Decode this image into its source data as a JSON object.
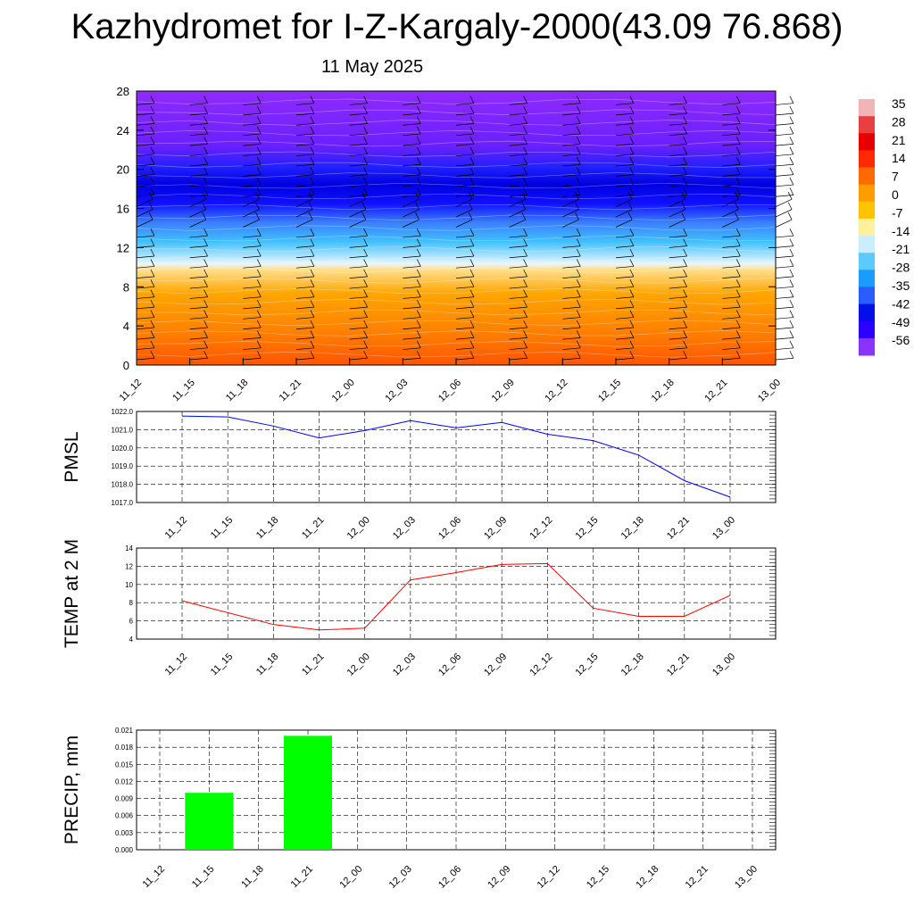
{
  "header": {
    "title": "Kazhydromet for I-Z-Kargaly-2000(43.09 76.868)",
    "subtitle": "11 May 2025"
  },
  "colors": {
    "pmsl_line": "#0000ff",
    "temp_line": "#ff0000",
    "precip_bar": "#00ff00",
    "cross_section_scale": [
      "#ffffff",
      "#ff6666",
      "#e60000",
      "#ff2200",
      "#ff6600",
      "#ff9900",
      "#ffcc00",
      "#ffff99",
      "#b3e6ff",
      "#33ccff",
      "#0099ff",
      "#0033ff",
      "#0000cc",
      "#3300ff",
      "#9933ff"
    ]
  },
  "chart_data": [
    {
      "type": "heatmap",
      "description_free": true,
      "title": "",
      "x": [
        "11_12",
        "11_15",
        "11_18",
        "11_21",
        "12_00",
        "12_03",
        "12_06",
        "12_09",
        "12_12",
        "12_15",
        "12_18",
        "12_21",
        "13_00"
      ],
      "y_ticks": [
        0,
        4,
        8,
        12,
        16,
        20,
        24,
        28
      ],
      "ylim": [
        0,
        28
      ],
      "colorbar_labels": [
        "35",
        "28",
        "21",
        "14",
        "7",
        "0",
        "-7",
        "-14",
        "-21",
        "-28",
        "-35",
        "-42",
        "-49",
        "-56"
      ],
      "profile": [
        {
          "z": 0,
          "value": 22
        },
        {
          "z": 4,
          "value": 14
        },
        {
          "z": 8,
          "value": 6
        },
        {
          "z": 10.5,
          "value": 0
        },
        {
          "z": 11,
          "value": -12
        },
        {
          "z": 13,
          "value": -22
        },
        {
          "z": 15,
          "value": -32
        },
        {
          "z": 17,
          "value": -45
        },
        {
          "z": 19,
          "value": -56
        },
        {
          "z": 21,
          "value": -52
        },
        {
          "z": 23,
          "value": -60
        },
        {
          "z": 28,
          "value": -66
        }
      ]
    },
    {
      "type": "line",
      "ylabel": "PMSL",
      "x": [
        "11_12",
        "11_15",
        "11_18",
        "11_21",
        "12_00",
        "12_03",
        "12_06",
        "12_09",
        "12_12",
        "12_15",
        "12_18",
        "12_21",
        "13_00"
      ],
      "y_ticks": [
        "1017.0",
        "1018.0",
        "1019.0",
        "1020.0",
        "1021.0",
        "1022.0"
      ],
      "ylim": [
        1017.0,
        1022.0
      ],
      "series": [
        {
          "values": [
            1021.75,
            1021.7,
            1021.2,
            1020.55,
            1020.95,
            1021.5,
            1021.1,
            1021.4,
            1020.75,
            1020.4,
            1019.6,
            1018.2,
            1017.3
          ]
        }
      ]
    },
    {
      "type": "line",
      "ylabel": "TEMP at 2 M",
      "x": [
        "11_12",
        "11_15",
        "11_18",
        "11_21",
        "12_00",
        "12_03",
        "12_06",
        "12_09",
        "12_12",
        "12_15",
        "12_18",
        "12_21",
        "13_00"
      ],
      "y_ticks": [
        "4",
        "6",
        "8",
        "10",
        "12",
        "14"
      ],
      "ylim": [
        4,
        14
      ],
      "series": [
        {
          "values": [
            8.2,
            6.9,
            5.6,
            5.0,
            5.2,
            10.5,
            11.3,
            12.2,
            12.3,
            7.4,
            6.5,
            6.5,
            8.8
          ]
        }
      ]
    },
    {
      "type": "bar",
      "ylabel": "PRECIP, mm",
      "categories": [
        "11_12",
        "11_15",
        "11_18",
        "11_21",
        "12_00",
        "12_03",
        "12_06",
        "12_09",
        "12_12",
        "12_15",
        "12_18",
        "12_21",
        "13_00"
      ],
      "y_ticks": [
        "0.000",
        "0.003",
        "0.006",
        "0.009",
        "0.012",
        "0.015",
        "0.018",
        "0.021"
      ],
      "ylim": [
        0,
        0.021
      ],
      "values": [
        0,
        0.01,
        0,
        0.02,
        0,
        0,
        0,
        0,
        0,
        0,
        0,
        0,
        0
      ]
    }
  ]
}
